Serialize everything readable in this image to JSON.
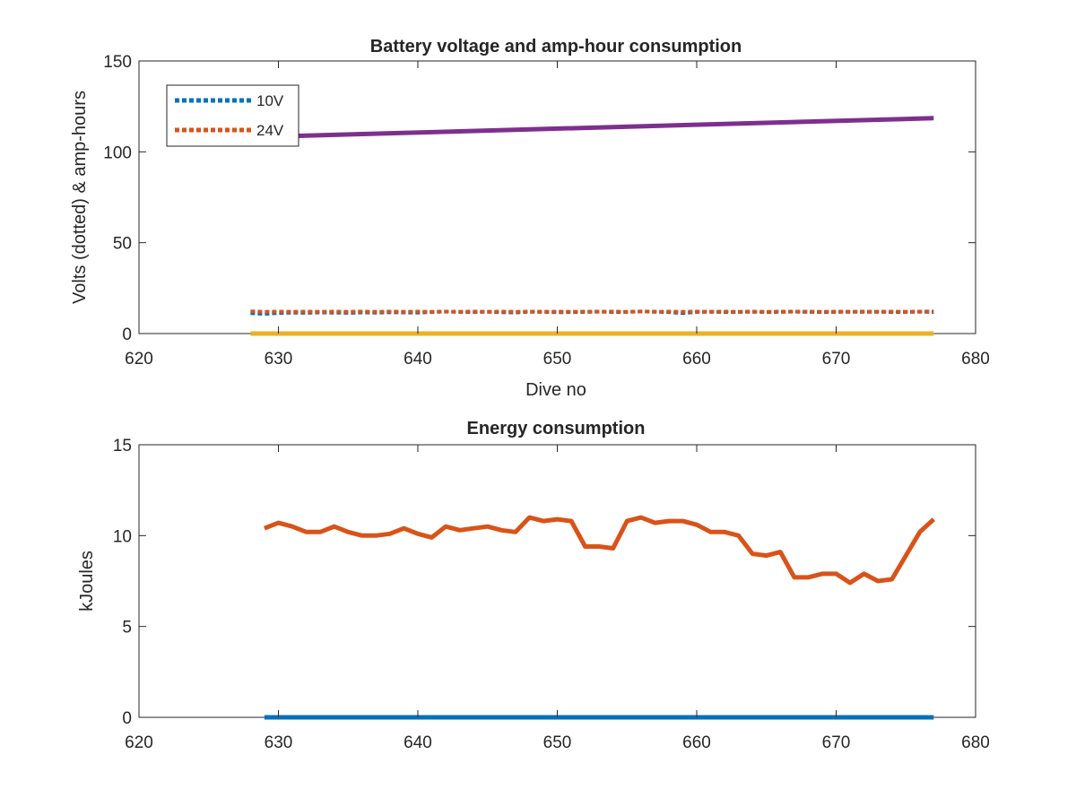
{
  "chart_data": [
    {
      "type": "line",
      "title": "Battery voltage and amp-hour consumption",
      "xlabel": "Dive no",
      "ylabel": "Volts (dotted) & amp-hours",
      "xlim": [
        620,
        680
      ],
      "ylim": [
        0,
        150
      ],
      "xticks": [
        620,
        630,
        640,
        650,
        660,
        670,
        680
      ],
      "yticks": [
        0,
        50,
        100,
        150
      ],
      "legend_position": "top-left",
      "colors": {
        "10V": "#0072BD",
        "24V": "#D95319",
        "amp_hours": "#7E2F8E",
        "baseline": "#EDB120"
      },
      "series": [
        {
          "name": "10V",
          "style": "dotted",
          "x": [
            628,
            629,
            630,
            631,
            632,
            633,
            634,
            635,
            636,
            637,
            638,
            639,
            640,
            641,
            642,
            643,
            644,
            645,
            646,
            647,
            648,
            649,
            650,
            651,
            652,
            653,
            654,
            655,
            656,
            657,
            658,
            659,
            660,
            661,
            662,
            663,
            664,
            665,
            666,
            667,
            668,
            669,
            670,
            671,
            672,
            673,
            674,
            675,
            676,
            677
          ],
          "y": [
            11.2,
            10.8,
            11.3,
            11.5,
            11.4,
            11.6,
            11.5,
            11.4,
            11.6,
            11.5,
            11.7,
            11.6,
            11.5,
            11.8,
            12.1,
            11.9,
            11.8,
            12.0,
            11.7,
            11.6,
            12.0,
            11.9,
            11.7,
            11.8,
            11.9,
            12.1,
            11.8,
            11.9,
            12.2,
            12.0,
            11.8,
            11.2,
            11.9,
            12.0,
            11.8,
            11.9,
            12.0,
            11.8,
            11.9,
            12.1,
            11.9,
            11.8,
            11.9,
            12.0,
            11.9,
            12.0,
            11.8,
            11.9,
            12.0,
            11.9
          ]
        },
        {
          "name": "24V",
          "style": "dotted",
          "x": [
            628,
            629,
            630,
            631,
            632,
            633,
            634,
            635,
            636,
            637,
            638,
            639,
            640,
            641,
            642,
            643,
            644,
            645,
            646,
            647,
            648,
            649,
            650,
            651,
            652,
            653,
            654,
            655,
            656,
            657,
            658,
            659,
            660,
            661,
            662,
            663,
            664,
            665,
            666,
            667,
            668,
            669,
            670,
            671,
            672,
            673,
            674,
            675,
            676,
            677
          ],
          "y": [
            12.2,
            12.0,
            12.1,
            12.0,
            12.1,
            12.0,
            12.1,
            12.0,
            12.1,
            12.0,
            12.1,
            12.0,
            12.1,
            12.0,
            12.1,
            12.0,
            12.1,
            12.0,
            12.1,
            12.0,
            12.1,
            12.0,
            12.1,
            12.0,
            12.1,
            12.0,
            12.1,
            12.0,
            12.1,
            12.0,
            12.1,
            12.0,
            12.1,
            12.0,
            12.1,
            12.0,
            12.1,
            12.0,
            12.1,
            12.0,
            12.1,
            12.0,
            12.1,
            12.0,
            12.1,
            12.0,
            12.1,
            12.0,
            12.1,
            12.2
          ]
        },
        {
          "style": "solid",
          "x": [
            630,
            677
          ],
          "y": [
            108.5,
            118.5
          ]
        },
        {
          "style": "solid",
          "x": [
            628,
            677
          ],
          "y": [
            0,
            0
          ]
        }
      ]
    },
    {
      "type": "line",
      "title": "Energy consumption",
      "xlabel": "",
      "ylabel": "kJoules",
      "xlim": [
        620,
        680
      ],
      "ylim": [
        0,
        15
      ],
      "xticks": [
        620,
        630,
        640,
        650,
        660,
        670,
        680
      ],
      "yticks": [
        0,
        5,
        10,
        15
      ],
      "colors": {
        "energy": "#D95319",
        "baseline": "#0072BD"
      },
      "series": [
        {
          "style": "solid",
          "x": [
            629,
            630,
            631,
            632,
            633,
            634,
            635,
            636,
            637,
            638,
            639,
            640,
            641,
            642,
            643,
            644,
            645,
            646,
            647,
            648,
            649,
            650,
            651,
            652,
            653,
            654,
            655,
            656,
            657,
            658,
            659,
            660,
            661,
            662,
            663,
            664,
            665,
            666,
            667,
            668,
            669,
            670,
            671,
            672,
            673,
            674,
            675,
            676,
            677
          ],
          "y": [
            10.4,
            10.7,
            10.5,
            10.2,
            10.2,
            10.5,
            10.2,
            10.0,
            10.0,
            10.1,
            10.4,
            10.1,
            9.9,
            10.5,
            10.3,
            10.4,
            10.5,
            10.3,
            10.2,
            11.0,
            10.8,
            10.9,
            10.8,
            9.4,
            9.4,
            9.3,
            10.8,
            11.0,
            10.7,
            10.8,
            10.8,
            10.6,
            10.2,
            10.2,
            10.0,
            9.0,
            8.9,
            9.1,
            7.7,
            7.7,
            7.9,
            7.9,
            7.4,
            7.9,
            7.5,
            7.6,
            8.9,
            10.2,
            10.9
          ]
        },
        {
          "style": "solid",
          "x": [
            629,
            677
          ],
          "y": [
            0,
            0
          ]
        }
      ]
    }
  ]
}
